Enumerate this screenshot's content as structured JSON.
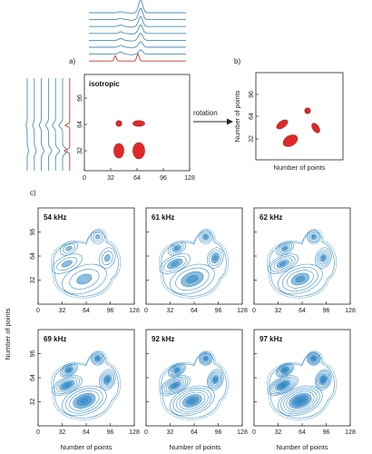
{
  "panel_labels": {
    "a": "a)",
    "b": "b)",
    "c": "c)"
  },
  "isotropic": {
    "title": "isotropic",
    "x_ticks": [
      "0",
      "32",
      "64",
      "96",
      "128"
    ],
    "y_ticks": [
      "32",
      "64",
      "96"
    ]
  },
  "arrow_label": "rotation",
  "rotated": {
    "xlabel": "Number of points",
    "ylabel": "Number of points",
    "y_ticks": [
      "32",
      "64",
      "96"
    ]
  },
  "spectra_panels": [
    {
      "title": "54 kHz",
      "rings": 3
    },
    {
      "title": "61 kHz",
      "rings": 4
    },
    {
      "title": "62 kHz",
      "rings": 5
    },
    {
      "title": "69 kHz",
      "rings": 6
    },
    {
      "title": "92 kHz",
      "rings": 7
    },
    {
      "title": "97 kHz",
      "rings": 8
    }
  ],
  "grid_axes": {
    "x_ticks": [
      "0",
      "32",
      "64",
      "96",
      "128"
    ],
    "y_ticks": [
      "32",
      "64",
      "96"
    ],
    "xlabel": "Number of points",
    "ylabel": "Number of points"
  },
  "colors": {
    "trace_blue": "#4a8fb8",
    "trace_red": "#c0392b",
    "peak_red": "#e02a2a",
    "contour_blue": "#2f86c4",
    "contour_light": "#8cc0e0"
  }
}
